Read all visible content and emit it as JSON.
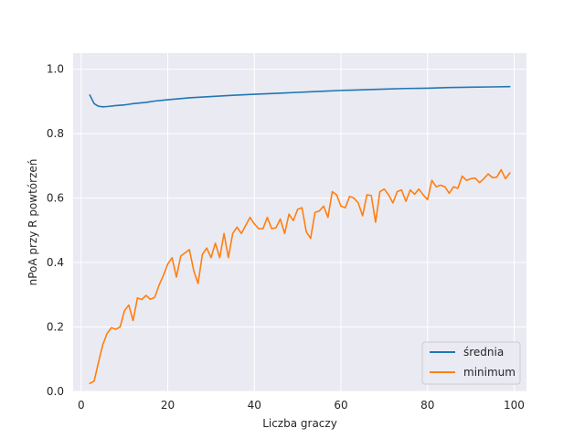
{
  "chart_data": {
    "type": "line",
    "title": "",
    "xlabel": "Liczba graczy",
    "ylabel": "nPoA przy R powtórzeń",
    "xlim": [
      -1.85,
      102.85
    ],
    "ylim": [
      0.0,
      1.05
    ],
    "xticks": [
      0,
      20,
      40,
      60,
      80,
      100
    ],
    "xtick_labels": [
      "0",
      "20",
      "40",
      "60",
      "80",
      "100"
    ],
    "yticks": [
      0.0,
      0.2,
      0.4,
      0.6,
      0.8,
      1.0
    ],
    "ytick_labels": [
      "0.0",
      "0.2",
      "0.4",
      "0.6",
      "0.8",
      "1.0"
    ],
    "grid": true,
    "legend_position": "bottom-right",
    "background": "#eaeaf2",
    "series": [
      {
        "name": "średnia",
        "color": "#1f77b4",
        "x": [
          2,
          3,
          4,
          5,
          6,
          8,
          10,
          12,
          15,
          17,
          20,
          25,
          30,
          35,
          40,
          45,
          50,
          55,
          60,
          65,
          70,
          75,
          80,
          85,
          90,
          95,
          99
        ],
        "y": [
          0.92,
          0.893,
          0.885,
          0.883,
          0.884,
          0.887,
          0.889,
          0.893,
          0.897,
          0.901,
          0.905,
          0.911,
          0.915,
          0.919,
          0.922,
          0.925,
          0.928,
          0.931,
          0.934,
          0.936,
          0.938,
          0.94,
          0.941,
          0.943,
          0.944,
          0.945,
          0.946
        ]
      },
      {
        "name": "minimum",
        "color": "#ff7f0e",
        "x": [
          2,
          3,
          4,
          5,
          6,
          7,
          8,
          9,
          10,
          11,
          12,
          13,
          14,
          15,
          16,
          17,
          18,
          19,
          20,
          21,
          22,
          23,
          24,
          25,
          26,
          27,
          28,
          29,
          30,
          31,
          32,
          33,
          34,
          35,
          36,
          37,
          38,
          39,
          40,
          41,
          42,
          43,
          44,
          45,
          46,
          47,
          48,
          49,
          50,
          51,
          52,
          53,
          54,
          55,
          56,
          57,
          58,
          59,
          60,
          61,
          62,
          63,
          64,
          65,
          66,
          67,
          68,
          69,
          70,
          71,
          72,
          73,
          74,
          75,
          76,
          77,
          78,
          79,
          80,
          81,
          82,
          83,
          84,
          85,
          86,
          87,
          88,
          89,
          90,
          91,
          92,
          93,
          94,
          95,
          96,
          97,
          98,
          99
        ],
        "y": [
          0.025,
          0.032,
          0.09,
          0.145,
          0.18,
          0.198,
          0.193,
          0.2,
          0.25,
          0.268,
          0.22,
          0.29,
          0.285,
          0.298,
          0.286,
          0.292,
          0.33,
          0.36,
          0.395,
          0.415,
          0.355,
          0.42,
          0.43,
          0.44,
          0.375,
          0.335,
          0.425,
          0.445,
          0.415,
          0.46,
          0.415,
          0.49,
          0.415,
          0.49,
          0.51,
          0.49,
          0.515,
          0.54,
          0.52,
          0.505,
          0.505,
          0.54,
          0.505,
          0.508,
          0.535,
          0.49,
          0.55,
          0.53,
          0.565,
          0.57,
          0.495,
          0.475,
          0.555,
          0.56,
          0.575,
          0.54,
          0.62,
          0.61,
          0.575,
          0.57,
          0.605,
          0.6,
          0.585,
          0.545,
          0.61,
          0.608,
          0.525,
          0.62,
          0.628,
          0.61,
          0.585,
          0.62,
          0.625,
          0.59,
          0.625,
          0.612,
          0.628,
          0.61,
          0.595,
          0.655,
          0.635,
          0.64,
          0.635,
          0.615,
          0.635,
          0.63,
          0.668,
          0.655,
          0.66,
          0.662,
          0.648,
          0.66,
          0.675,
          0.663,
          0.665,
          0.688,
          0.66,
          0.678
        ]
      }
    ]
  }
}
